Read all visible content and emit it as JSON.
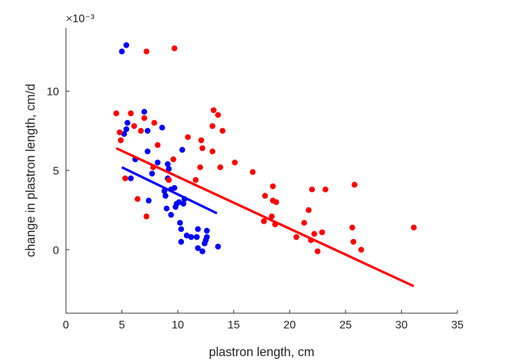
{
  "chart_data": {
    "type": "scatter",
    "xlabel": "plastron length, cm",
    "ylabel": "change in plastron length, cm/d",
    "y_exponent_label": "×10⁻³",
    "xlim": [
      0,
      35
    ],
    "ylim": [
      -4,
      14
    ],
    "x_ticks": [
      0,
      5,
      10,
      15,
      20,
      25,
      30,
      35
    ],
    "y_ticks": [
      0,
      5,
      10
    ],
    "grid": false,
    "series": [
      {
        "color": "#0000ff",
        "points": [
          [
            5.0,
            12.5
          ],
          [
            5.4,
            12.9
          ],
          [
            5.2,
            7.3
          ],
          [
            5.4,
            7.6
          ],
          [
            5.5,
            8.0
          ],
          [
            5.8,
            4.5
          ],
          [
            6.2,
            5.7
          ],
          [
            7.0,
            8.7
          ],
          [
            7.3,
            7.5
          ],
          [
            7.3,
            6.2
          ],
          [
            7.4,
            3.1
          ],
          [
            7.7,
            4.8
          ],
          [
            8.2,
            5.5
          ],
          [
            8.6,
            7.7
          ],
          [
            8.8,
            3.7
          ],
          [
            8.9,
            3.4
          ],
          [
            9.0,
            2.6
          ],
          [
            9.1,
            4.5
          ],
          [
            9.1,
            5.4
          ],
          [
            9.2,
            5.1
          ],
          [
            9.4,
            2.2
          ],
          [
            9.4,
            3.8
          ],
          [
            9.7,
            3.9
          ],
          [
            9.8,
            2.7
          ],
          [
            9.9,
            2.9
          ],
          [
            10.1,
            3.0
          ],
          [
            10.2,
            1.7
          ],
          [
            10.3,
            0.5
          ],
          [
            10.3,
            1.3
          ],
          [
            10.4,
            6.3
          ],
          [
            10.5,
            2.9
          ],
          [
            10.6,
            3.2
          ],
          [
            10.8,
            0.9
          ],
          [
            11.2,
            0.8
          ],
          [
            11.7,
            0.8
          ],
          [
            11.8,
            1.3
          ],
          [
            11.8,
            0.1
          ],
          [
            12.2,
            -0.1
          ],
          [
            12.4,
            0.4
          ],
          [
            12.5,
            0.6
          ],
          [
            12.6,
            1.2
          ],
          [
            12.6,
            0.8
          ],
          [
            13.6,
            0.2
          ]
        ],
        "fit_line": {
          "x": [
            5.0,
            13.5
          ],
          "y": [
            5.2,
            2.3
          ]
        }
      },
      {
        "color": "#ff0000",
        "points": [
          [
            4.5,
            8.6
          ],
          [
            4.8,
            7.4
          ],
          [
            4.9,
            6.9
          ],
          [
            5.3,
            4.5
          ],
          [
            5.8,
            8.6
          ],
          [
            6.1,
            7.8
          ],
          [
            6.4,
            3.2
          ],
          [
            6.7,
            7.5
          ],
          [
            7.0,
            8.3
          ],
          [
            7.2,
            2.1
          ],
          [
            7.2,
            12.5
          ],
          [
            7.8,
            5.2
          ],
          [
            7.9,
            8.0
          ],
          [
            8.2,
            6.6
          ],
          [
            9.2,
            4.4
          ],
          [
            9.6,
            5.7
          ],
          [
            9.7,
            12.7
          ],
          [
            10.9,
            7.1
          ],
          [
            11.6,
            4.4
          ],
          [
            12.0,
            5.2
          ],
          [
            12.1,
            6.9
          ],
          [
            12.2,
            6.4
          ],
          [
            13.1,
            6.2
          ],
          [
            13.1,
            7.8
          ],
          [
            13.2,
            8.8
          ],
          [
            13.6,
            8.5
          ],
          [
            13.8,
            5.2
          ],
          [
            14.0,
            7.5
          ],
          [
            15.1,
            5.5
          ],
          [
            16.7,
            4.9
          ],
          [
            17.7,
            1.8
          ],
          [
            17.8,
            3.4
          ],
          [
            18.4,
            2.1
          ],
          [
            18.5,
            3.1
          ],
          [
            18.5,
            4.0
          ],
          [
            18.7,
            1.6
          ],
          [
            18.8,
            3.0
          ],
          [
            20.6,
            0.8
          ],
          [
            21.3,
            1.7
          ],
          [
            21.7,
            2.5
          ],
          [
            21.9,
            0.6
          ],
          [
            22.0,
            3.8
          ],
          [
            22.2,
            1.0
          ],
          [
            22.5,
            -0.1
          ],
          [
            22.9,
            1.1
          ],
          [
            23.2,
            3.8
          ],
          [
            25.6,
            1.4
          ],
          [
            25.7,
            0.5
          ],
          [
            25.8,
            4.1
          ],
          [
            26.4,
            0.0
          ],
          [
            31.1,
            1.4
          ]
        ],
        "fit_line": {
          "x": [
            4.5,
            31.1
          ],
          "y": [
            6.4,
            -2.3
          ]
        }
      }
    ]
  }
}
